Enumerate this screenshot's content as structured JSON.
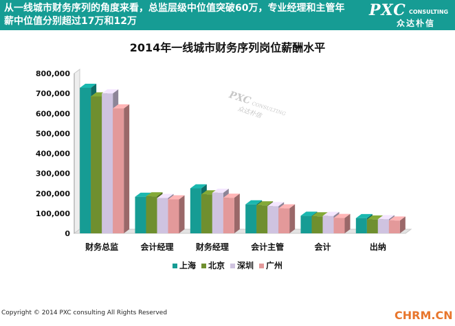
{
  "header": {
    "headline": "从一线城市财务序列的角度来看，总监层级中位值突破60万，专业经理和主管年薪中位值分别超过17万和12万",
    "brand_name": "PXC",
    "brand_sub": "CONSULTING",
    "brand_cn": "众达朴信",
    "bg_color": "#169c94"
  },
  "watermark": {
    "main": "PXC",
    "sub": "CONSULTING",
    "cn": "众达朴信"
  },
  "footer": {
    "copyright": "Copyright © 2014 PXC consulting All Rights Reserved",
    "site": "CHRM.CN"
  },
  "chart_data": {
    "type": "bar",
    "title": "2014年一线城市财务序列岗位薪酬水平",
    "categories": [
      "财务总监",
      "会计经理",
      "财务经理",
      "会计主管",
      "会计",
      "出纳"
    ],
    "series": [
      {
        "name": "上海",
        "color": "#169c94",
        "values": [
          728000,
          183000,
          225000,
          145000,
          88000,
          76000
        ]
      },
      {
        "name": "北京",
        "color": "#6f8f2f",
        "values": [
          685000,
          185000,
          195000,
          140000,
          85000,
          69000
        ]
      },
      {
        "name": "深圳",
        "color": "#cfc3e0",
        "values": [
          700000,
          177000,
          203000,
          136000,
          87000,
          71000
        ]
      },
      {
        "name": "广州",
        "color": "#e3999a",
        "values": [
          625000,
          170000,
          178000,
          125000,
          77000,
          64000
        ]
      }
    ],
    "ylim": [
      0,
      800000
    ],
    "yticks": [
      "0",
      "100,000",
      "200,000",
      "300,000",
      "400,000",
      "500,000",
      "600,000",
      "700,000",
      "800,000"
    ],
    "grid": false,
    "legend_position": "bottom",
    "style": "3d-bar"
  }
}
